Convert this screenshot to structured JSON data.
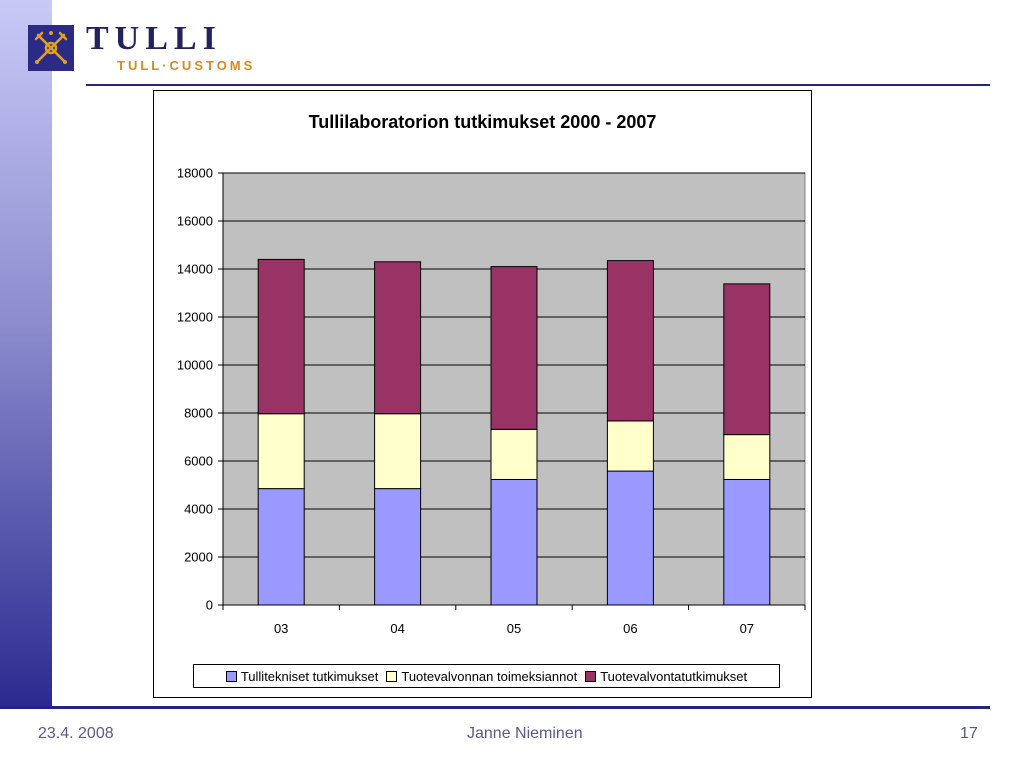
{
  "brand": {
    "name": "TULLI",
    "subtitle": "TULL·CUSTOMS",
    "logo_icon": "customs-emblem-icon"
  },
  "footer": {
    "date": "23.4. 2008",
    "author": "Janne Nieminen",
    "page_number": "17"
  },
  "chart_data": {
    "type": "bar",
    "stacked": true,
    "title": "Tullilaboratorion tutkimukset 2000 - 2007",
    "xlabel": "",
    "ylabel": "",
    "categories": [
      "03",
      "04",
      "05",
      "06",
      "07"
    ],
    "series": [
      {
        "name": "Tullitekniset tutkimukset",
        "color": "#9999ff",
        "values": [
          4850,
          4850,
          5230,
          5580,
          5230
        ]
      },
      {
        "name": "Tuotevalvonnan toimeksiannot",
        "color": "#ffffcc",
        "values": [
          3120,
          3120,
          2090,
          2090,
          1870
        ]
      },
      {
        "name": "Tuotevalvontatutkimukset",
        "color": "#993366",
        "values": [
          6430,
          6330,
          6780,
          6680,
          6280
        ]
      }
    ],
    "ylim": [
      0,
      18000
    ],
    "yticks": [
      "0",
      "2000",
      "4000",
      "6000",
      "8000",
      "10000",
      "12000",
      "14000",
      "16000",
      "18000"
    ],
    "grid": true,
    "plot_background": "#c0c0c0",
    "legend_position": "bottom"
  }
}
